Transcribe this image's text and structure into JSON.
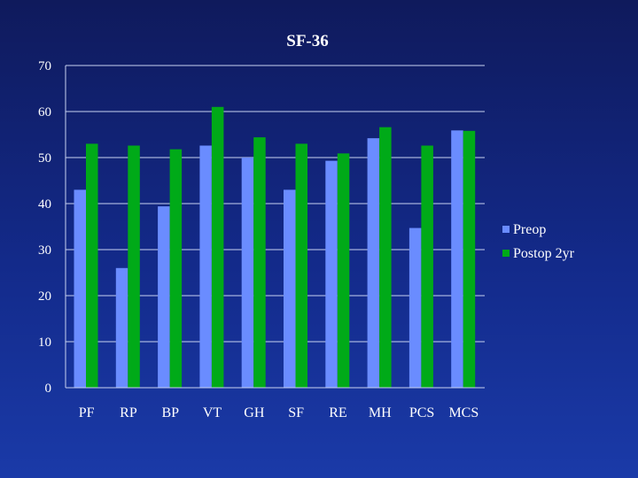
{
  "chart_data": {
    "type": "bar",
    "title": "SF-36",
    "xlabel": "",
    "ylabel": "",
    "ylim": [
      0,
      70
    ],
    "yticks": [
      0,
      10,
      20,
      30,
      40,
      50,
      60,
      70
    ],
    "grid": true,
    "legend_position": "right",
    "categories": [
      "PF",
      "RP",
      "BP",
      "VT",
      "GH",
      "SF",
      "RE",
      "MH",
      "PCS",
      "MCS"
    ],
    "series": [
      {
        "name": "Preop",
        "color": "#6a8cff",
        "values": [
          43,
          26,
          39.4,
          52.6,
          50,
          43,
          49.3,
          54.2,
          34.7,
          55.9
        ]
      },
      {
        "name": "Postop 2yr",
        "color": "#00aa18",
        "values": [
          53,
          52.6,
          51.8,
          61,
          54.4,
          53,
          50.9,
          56.6,
          52.6,
          55.8
        ]
      }
    ]
  }
}
